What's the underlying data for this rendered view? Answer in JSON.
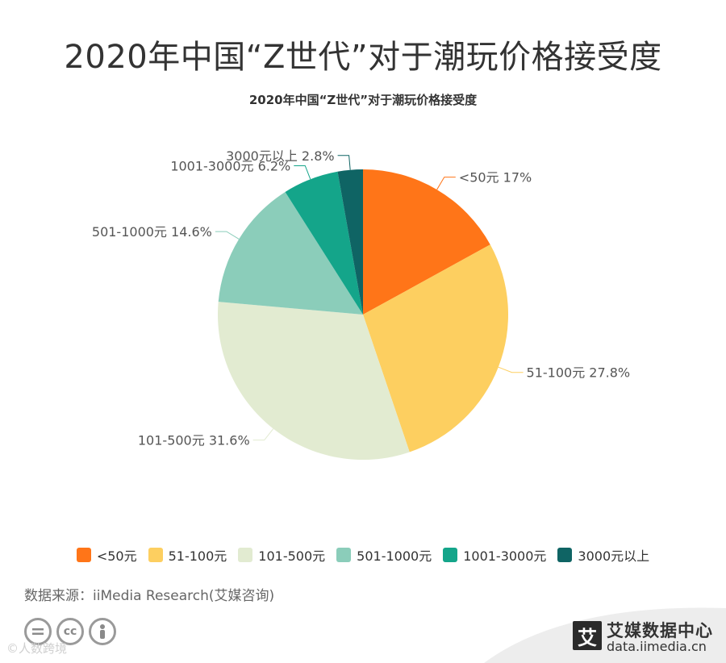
{
  "header": {
    "title": "2020年中国“Z世代”对于潮玩价格接受度",
    "chart_title": "2020年中国“Z世代”对于潮玩价格接受度"
  },
  "chart_data": {
    "type": "pie",
    "title": "2020年中国“Z世代”对于潮玩价格接受度",
    "unit": "%",
    "legend_position": "bottom",
    "slices": [
      {
        "label": "<50元",
        "value": 17,
        "value_text": "17%",
        "color": "#FF7518"
      },
      {
        "label": "51-100元",
        "value": 27.8,
        "value_text": "27.8%",
        "color": "#FDCF60"
      },
      {
        "label": "101-500元",
        "value": 31.6,
        "value_text": "31.6%",
        "color": "#E2EBD1"
      },
      {
        "label": "501-1000元",
        "value": 14.6,
        "value_text": "14.6%",
        "color": "#8BCDBA"
      },
      {
        "label": "1001-3000元",
        "value": 6.2,
        "value_text": "6.2%",
        "color": "#14A58A"
      },
      {
        "label": "3000元以上",
        "value": 2.8,
        "value_text": "2.8%",
        "color": "#0F6464"
      }
    ]
  },
  "legend": {
    "items": [
      {
        "label": "<50元",
        "color": "#FF7518"
      },
      {
        "label": "51-100元",
        "color": "#FDCF60"
      },
      {
        "label": "101-500元",
        "color": "#E2EBD1"
      },
      {
        "label": "501-1000元",
        "color": "#8BCDBA"
      },
      {
        "label": "1001-3000元",
        "color": "#14A58A"
      },
      {
        "label": "3000元以上",
        "color": "#0F6464"
      }
    ]
  },
  "footer": {
    "source": "数据来源：iiMedia Research(艾媒咨询)",
    "license_icons": [
      "equals-icon",
      "cc-icon",
      "person-icon"
    ],
    "cc_text": "cc",
    "watermark": "©人数跨境",
    "brand_logo": "艾",
    "brand_name": "艾媒数据中心",
    "brand_url": "data.iimedia.cn"
  }
}
